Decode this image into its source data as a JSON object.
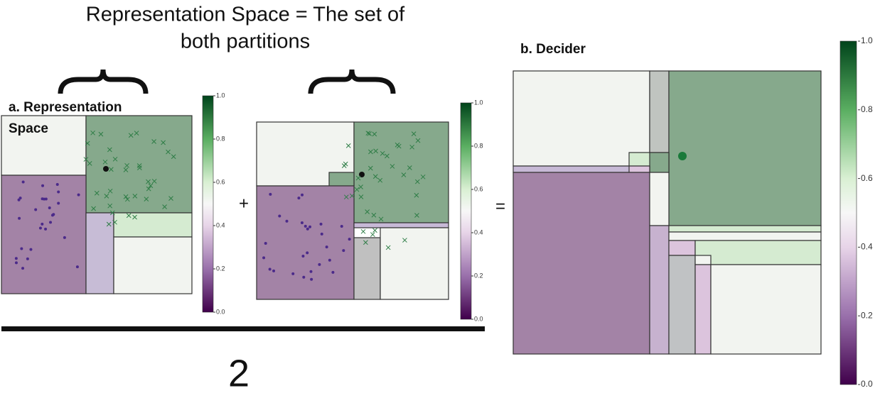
{
  "header": {
    "title_lines": [
      "Representation Space = The set of",
      "both partitions"
    ]
  },
  "panel_a": {
    "label_lines": [
      "a. Representation",
      "Space"
    ]
  },
  "panel_b": {
    "label": "b. Decider"
  },
  "operators": {
    "plus": "+",
    "equals": "=",
    "divisor": "2"
  },
  "colorbar": {
    "labels": [
      "0.0",
      "0.2",
      "0.4",
      "0.6",
      "0.8",
      "1.0"
    ]
  }
}
